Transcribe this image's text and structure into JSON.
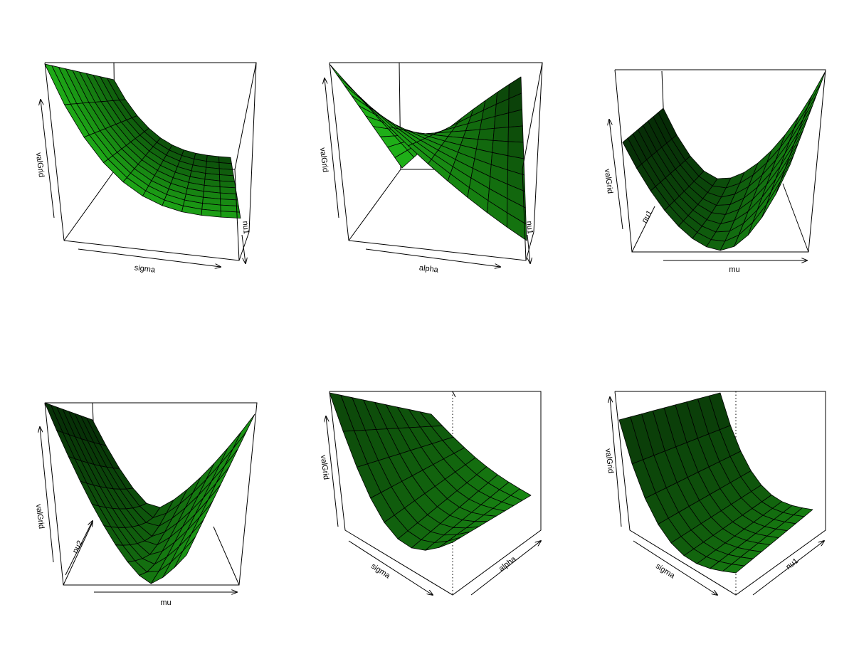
{
  "chart_data": [
    {
      "type": "surface",
      "xlabel": "sigma",
      "ylabel": "",
      "zlabel": "valGrid",
      "hidden_axis_label": "nu1",
      "colors": {
        "light": "#22c01a",
        "dark": "#062a06",
        "edge": "#000000"
      }
    },
    {
      "type": "surface",
      "xlabel": "alpha",
      "ylabel": "",
      "zlabel": "valGrid",
      "hidden_axis_label": "nu1",
      "colors": {
        "light": "#22c01a",
        "dark": "#031803",
        "edge": "#000000"
      }
    },
    {
      "type": "surface",
      "xlabel": "mu",
      "ylabel": "nu1",
      "zlabel": "valGrid",
      "colors": {
        "light": "#1fb31a",
        "dark": "#062a06",
        "edge": "#000000"
      }
    },
    {
      "type": "surface",
      "xlabel": "mu",
      "ylabel": "nu2",
      "zlabel": "valGrid",
      "colors": {
        "light": "#22b81a",
        "dark": "#062a06",
        "edge": "#000000"
      }
    },
    {
      "type": "surface",
      "xlabel": "sigma",
      "ylabel": "alpha",
      "zlabel": "valGrid",
      "colors": {
        "light": "#1c9c16",
        "dark": "#0a3a08",
        "edge": "#000000"
      }
    },
    {
      "type": "surface",
      "xlabel": "sigma",
      "ylabel": "nu1",
      "zlabel": "valGrid",
      "colors": {
        "light": "#1c9c16",
        "dark": "#0a3a08",
        "edge": "#000000"
      }
    }
  ]
}
